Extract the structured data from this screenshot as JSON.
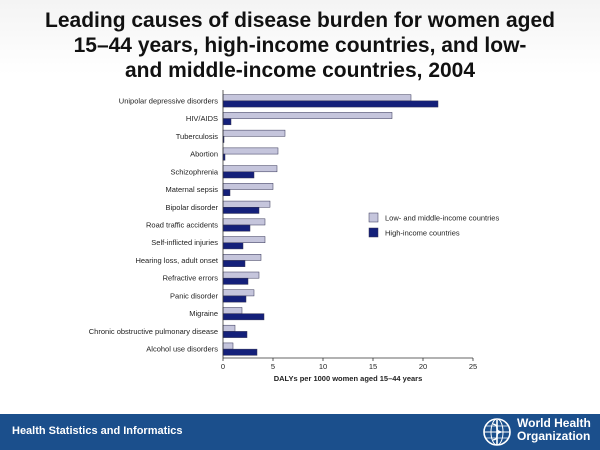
{
  "title_lines": [
    "Leading causes of disease burden for women aged",
    "15–44 years, high-income countries, and low-",
    "and middle-income countries, 2004"
  ],
  "footer": {
    "text": "Health Statistics and Informatics",
    "org_line1": "World Health",
    "org_line2": "Organization"
  },
  "chart_data": {
    "type": "bar",
    "orientation": "horizontal",
    "title": "Leading causes of disease burden for women aged 15–44 years, high-income countries, and low- and middle-income countries, 2004",
    "xlabel": "DALYs per 1000 women aged 15–44 years",
    "ylabel": "",
    "xlim": [
      0,
      25
    ],
    "xticks": [
      0,
      5,
      10,
      15,
      20,
      25
    ],
    "grid": false,
    "legend_position": "right",
    "categories": [
      "Unipolar depressive disorders",
      "HIV/AIDS",
      "Tuberculosis",
      "Abortion",
      "Schizophrenia",
      "Maternal sepsis",
      "Bipolar disorder",
      "Road traffic accidents",
      "Self-inflicted injuries",
      "Hearing loss, adult onset",
      "Refractive errors",
      "Panic disorder",
      "Migraine",
      "Chronic obstructive pulmonary disease",
      "Alcohol use disorders"
    ],
    "series": [
      {
        "name": "Low- and middle-income countries",
        "color": "#c5c5dc",
        "values": [
          18.8,
          16.9,
          6.2,
          5.5,
          5.4,
          5.0,
          4.7,
          4.2,
          4.2,
          3.8,
          3.6,
          3.1,
          1.9,
          1.2,
          1.0
        ]
      },
      {
        "name": "High-income countries",
        "color": "#14207a",
        "values": [
          21.5,
          0.8,
          0.1,
          0.2,
          3.1,
          0.7,
          3.6,
          2.7,
          2.0,
          2.2,
          2.5,
          2.3,
          4.1,
          2.4,
          3.4
        ]
      }
    ]
  }
}
